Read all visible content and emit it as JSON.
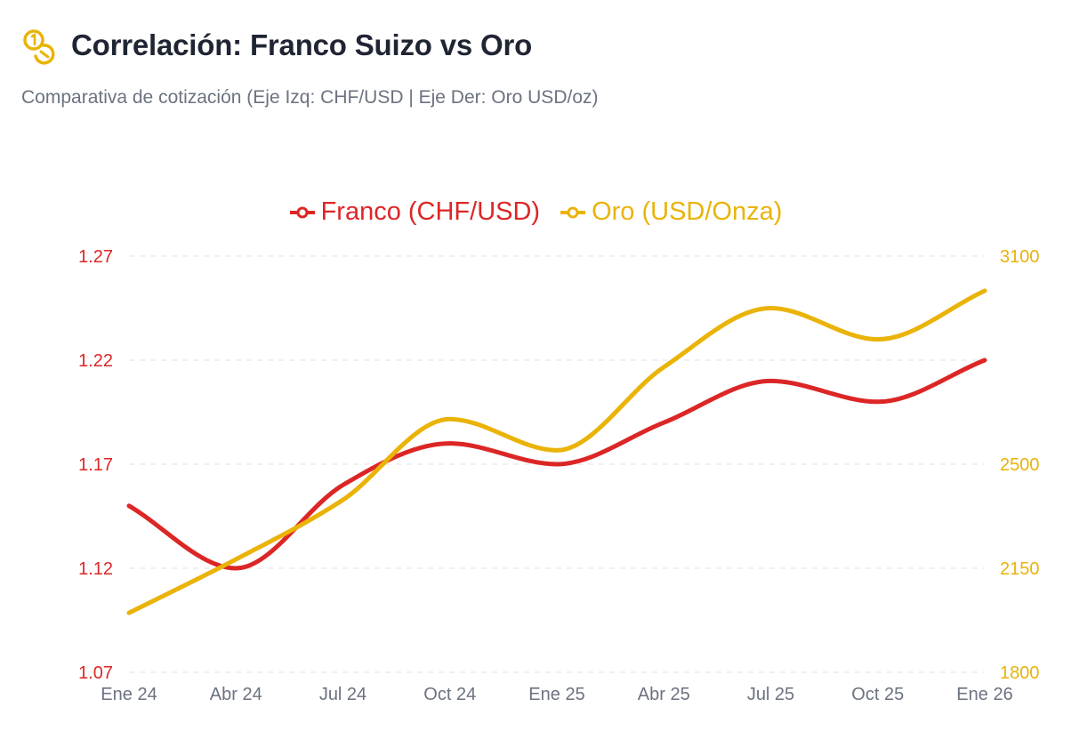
{
  "header": {
    "title": "Correlación: Franco Suizo vs Oro",
    "subtitle": "Comparativa de cotización (Eje Izq: CHF/USD | Eje Der: Oro USD/oz)",
    "icon": "coins-icon"
  },
  "colors": {
    "franco": "#dc2626",
    "oro": "#eab308",
    "grid": "#e5e7eb",
    "xtick": "#6b7280"
  },
  "chart_data": {
    "type": "line",
    "title": "Correlación: Franco Suizo vs Oro",
    "x": [
      "Ene 24",
      "Abr 24",
      "Jul 24",
      "Oct 24",
      "Ene 25",
      "Abr 25",
      "Jul 25",
      "Oct 25",
      "Ene 26"
    ],
    "series": [
      {
        "name": "Franco (CHF/USD)",
        "axis": "left",
        "color": "#dc2626",
        "values": [
          1.15,
          1.12,
          1.16,
          1.18,
          1.17,
          1.19,
          1.21,
          1.2,
          1.22
        ]
      },
      {
        "name": "Oro (USD/Onza)",
        "axis": "right",
        "color": "#eab308",
        "values": [
          2000,
          2180,
          2380,
          2630,
          2540,
          2780,
          2950,
          2860,
          3000
        ]
      }
    ],
    "y_left": {
      "ticks": [
        "1.27",
        "1.22",
        "1.17",
        "1.12",
        "1.07"
      ],
      "range": [
        1.07,
        1.27
      ]
    },
    "y_right": {
      "ticks": [
        "3100",
        "2500",
        "2150",
        "1800"
      ],
      "range": [
        1800,
        3100
      ]
    },
    "grid": true,
    "legend": "top-center"
  }
}
